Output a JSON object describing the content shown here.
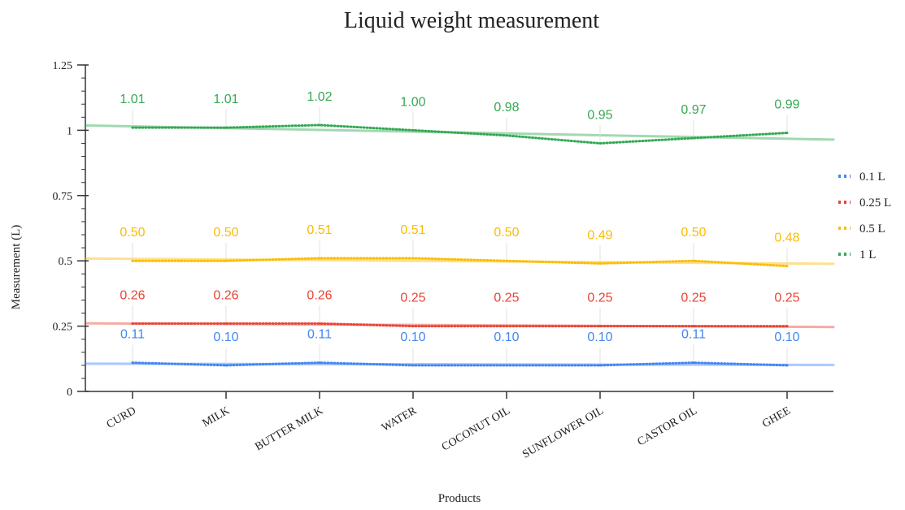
{
  "chart_data": {
    "type": "line",
    "title": "Liquid weight measurement",
    "xlabel": "Products",
    "ylabel": "Measurement (L)",
    "ylim": [
      0,
      1.25
    ],
    "yticks": [
      0,
      0.25,
      0.5,
      0.75,
      1,
      1.25
    ],
    "ytick_labels": [
      "0",
      "0.25",
      "0.5",
      "0.75",
      "1",
      "1.25"
    ],
    "categories": [
      "CURD",
      "MILK",
      "BUTTER MILK",
      "WATER",
      "COCONUT OIL",
      "SUNFLOWER OIL",
      "CASTOR OIL",
      "GHEE"
    ],
    "legend_position": "right",
    "grid": false,
    "trendlines": true,
    "series": [
      {
        "name": "0.1 L",
        "color": "#4285f4",
        "values": [
          0.11,
          0.1,
          0.11,
          0.1,
          0.1,
          0.1,
          0.11,
          0.1
        ],
        "labels": [
          "0.11",
          "0.10",
          "0.11",
          "0.10",
          "0.10",
          "0.10",
          "0.11",
          "0.10"
        ]
      },
      {
        "name": "0.25 L",
        "color": "#ea4335",
        "values": [
          0.26,
          0.26,
          0.26,
          0.25,
          0.25,
          0.25,
          0.25,
          0.25
        ],
        "labels": [
          "0.26",
          "0.26",
          "0.26",
          "0.25",
          "0.25",
          "0.25",
          "0.25",
          "0.25"
        ]
      },
      {
        "name": "0.5 L",
        "color": "#fbbc04",
        "values": [
          0.5,
          0.5,
          0.51,
          0.51,
          0.5,
          0.49,
          0.5,
          0.48
        ],
        "labels": [
          "0.50",
          "0.50",
          "0.51",
          "0.51",
          "0.50",
          "0.49",
          "0.50",
          "0.48"
        ]
      },
      {
        "name": "1 L",
        "color": "#34a853",
        "values": [
          1.01,
          1.01,
          1.02,
          1.0,
          0.98,
          0.95,
          0.97,
          0.99
        ],
        "labels": [
          "1.01",
          "1.01",
          "1.02",
          "1.00",
          "0.98",
          "0.95",
          "0.97",
          "0.99"
        ]
      }
    ]
  }
}
